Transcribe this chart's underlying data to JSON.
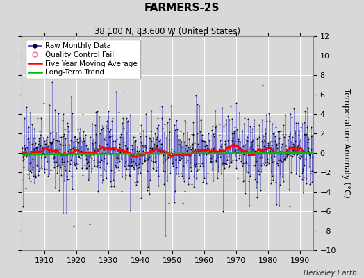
{
  "title": "FARMERS-2S",
  "subtitle": "38.100 N, 83.600 W (United States)",
  "ylabel": "Temperature Anomaly (°C)",
  "attribution": "Berkeley Earth",
  "ylim": [
    -10,
    12
  ],
  "yticks": [
    -10,
    -8,
    -6,
    -4,
    -2,
    0,
    2,
    4,
    6,
    8,
    10,
    12
  ],
  "xlim": [
    1903,
    1994
  ],
  "xticks": [
    1910,
    1920,
    1930,
    1940,
    1950,
    1960,
    1970,
    1980,
    1990
  ],
  "year_start": 1895,
  "year_end": 1993,
  "background_color": "#d8d8d8",
  "plot_bg_color": "#d8d8d8",
  "grid_color": "#ffffff",
  "raw_line_color": "#3333cc",
  "raw_dot_color": "#000000",
  "moving_avg_color": "#ff0000",
  "trend_color": "#00bb00",
  "qc_fail_color": "#ff69b4",
  "legend_fontsize": 7.5,
  "title_fontsize": 11,
  "subtitle_fontsize": 8.5,
  "tick_fontsize": 8,
  "seed": 42
}
